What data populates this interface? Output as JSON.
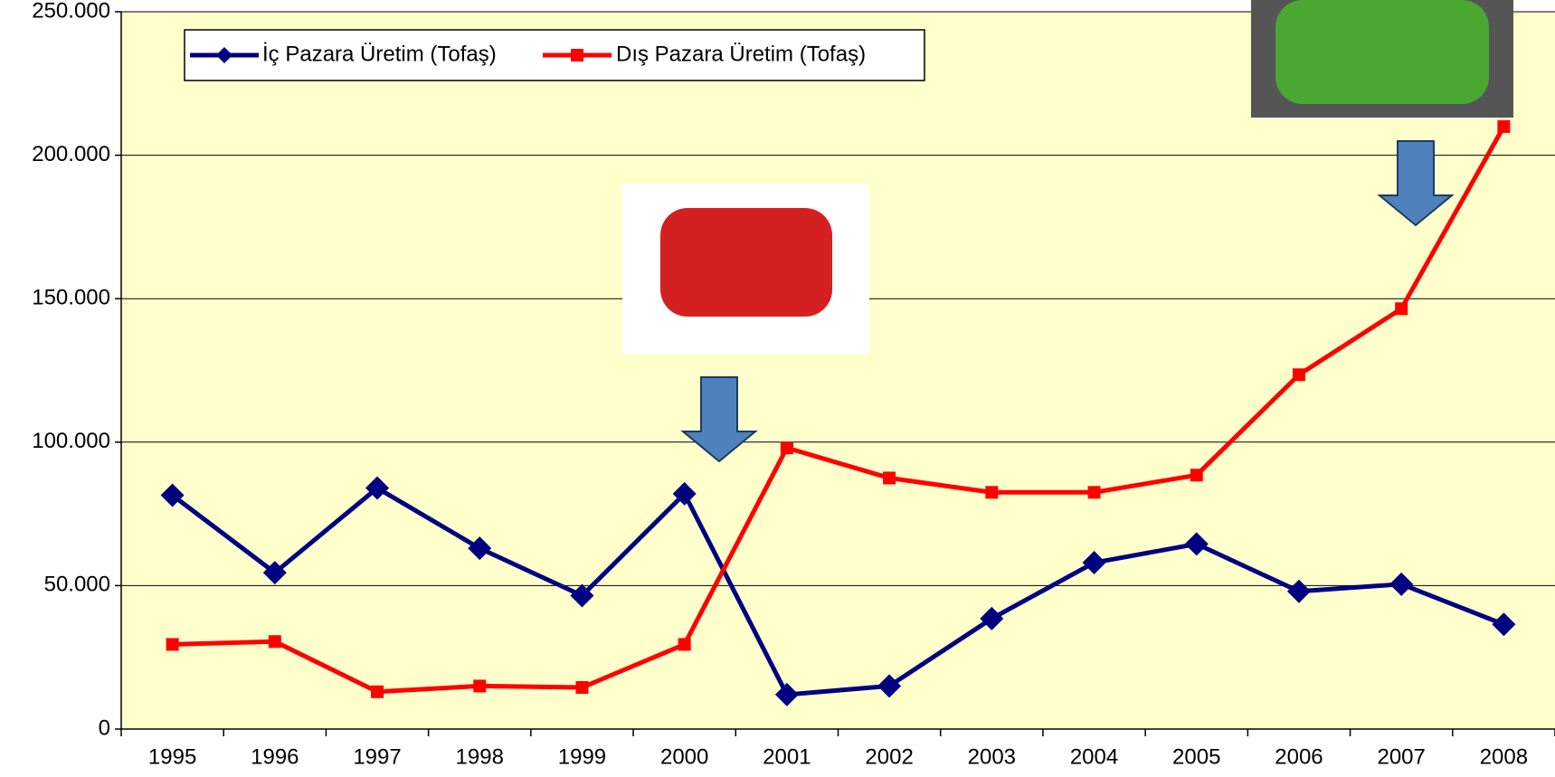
{
  "chart_data": {
    "type": "line",
    "categories": [
      "1995",
      "1996",
      "1997",
      "1998",
      "1999",
      "2000",
      "2001",
      "2002",
      "2003",
      "2004",
      "2005",
      "2006",
      "2007",
      "2008"
    ],
    "series": [
      {
        "name": "İç Pazara Üretim (Tofaş)",
        "color": "#000080",
        "values": [
          81500,
          54500,
          84000,
          63000,
          46500,
          82000,
          12000,
          15000,
          38500,
          58000,
          64500,
          48000,
          50500,
          36500
        ]
      },
      {
        "name": "Dış Pazara Üretim (Tofaş)",
        "color": "#ff0000",
        "values": [
          29500,
          30500,
          13000,
          15000,
          14500,
          29500,
          98000,
          87500,
          82500,
          82500,
          88500,
          123500,
          146500,
          210000
        ]
      }
    ],
    "ylim": [
      0,
      250000
    ],
    "yticks": [
      0,
      {
        "value": 50000,
        "label": "50.000"
      },
      {
        "value": 100000,
        "label": "100.000"
      },
      {
        "value": 150000,
        "label": "150.000"
      },
      {
        "value": 200000,
        "label": "200.000"
      },
      {
        "value": 250000,
        "label": "250.000"
      }
    ],
    "grid": true
  }
}
